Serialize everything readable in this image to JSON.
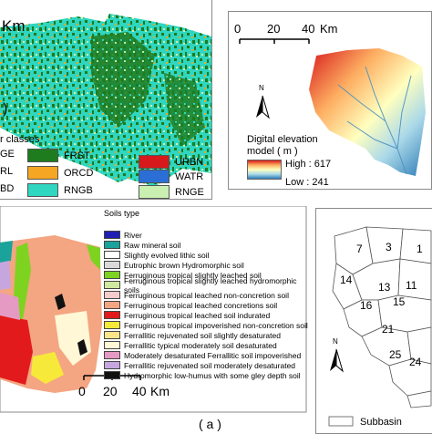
{
  "landuse_map": {
    "scale_unit": "Km",
    "paren": ")",
    "legend_title": "r classes",
    "legend": [
      {
        "code": "FRST",
        "color": "#1e7b1e"
      },
      {
        "code": "ORCD",
        "color": "#f5a623"
      },
      {
        "code": "RNGB",
        "color": "#2fd6c0"
      },
      {
        "code": "URBN",
        "color": "#d7191c"
      },
      {
        "code": "WATR",
        "color": "#2b6fd6"
      },
      {
        "code": "RNGE",
        "color": "#c9f0b0"
      }
    ],
    "cut_codes": [
      "GE",
      "RL",
      "BD"
    ]
  },
  "elevation_map": {
    "scale_ticks": [
      "0",
      "20",
      "40"
    ],
    "scale_unit": "Km",
    "north": "N",
    "legend_title": "Digital elevation model ( m )",
    "high_label": "High : 617",
    "low_label": "Low : 241",
    "high_value": 617,
    "low_value": 241
  },
  "soil_map": {
    "legend_title": "Soils type",
    "legend": [
      {
        "label": "River",
        "color": "#1f1fb4"
      },
      {
        "label": "Raw mineral soil",
        "color": "#1aa39a"
      },
      {
        "label": "Slightly evolved lithic soil",
        "color": "#ffffff"
      },
      {
        "label": "Eutrophic brown Hydromorphic soil",
        "color": "#d9d9d9"
      },
      {
        "label": "Ferruginous tropical slightly leached soil",
        "color": "#7ed321"
      },
      {
        "label": "Ferruginous tropical slightly leached hydromorphic soils",
        "color": "#d0e8a0"
      },
      {
        "label": "Ferruginous tropical leached non-concretion soil",
        "color": "#f4cccc"
      },
      {
        "label": "Ferruginous tropical leached concretions soil",
        "color": "#f4a582"
      },
      {
        "label": "Ferruginous tropical leached soil  indurated",
        "color": "#e31a1c"
      },
      {
        "label": "Ferruginous tropical impoverished non-concretion soil",
        "color": "#f7e93a"
      },
      {
        "label": "Ferrallitic rejuvenated soil slightly desaturated",
        "color": "#fde68a"
      },
      {
        "label": "Ferrallitic  typical moderately soil desaturated",
        "color": "#fff7d6"
      },
      {
        "label": "Moderately desaturated Ferrallitic soil impoverished",
        "color": "#e59ac4"
      },
      {
        "label": "Ferrallitic rejuvenated soil moderately desaturated",
        "color": "#c7a6e0"
      },
      {
        "label": "Hydromorphic low-humus with some gley depth soil",
        "color": "#111111"
      }
    ],
    "scale_ticks": [
      "0",
      "20",
      "40"
    ],
    "scale_unit": "Km",
    "panel_label": "( a )"
  },
  "subbasin_map": {
    "numbers": [
      "7",
      "3",
      "1",
      "14",
      "13",
      "11",
      "15",
      "16",
      "21",
      "25",
      "24"
    ],
    "north": "N",
    "legend_label": "Subbasin"
  }
}
